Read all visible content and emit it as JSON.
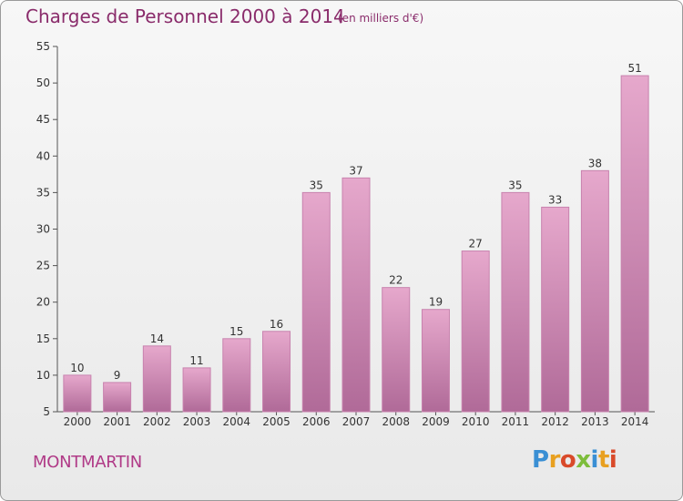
{
  "header": {
    "title": "Charges de Personnel 2000 à 2014",
    "subtitle": "(en milliers d'€)"
  },
  "footer": {
    "place": "MONTMARTIN",
    "logo_text": "Proxiti",
    "logo_colors": [
      "#3a8fd4",
      "#e8a020",
      "#d94a2a",
      "#7dbd3b",
      "#3a8fd4",
      "#e8a020",
      "#d94a2a"
    ]
  },
  "colors": {
    "bar_top": "#e6a8cc",
    "bar_bottom": "#b06a98",
    "bar_side": "#c882ae",
    "title": "#8a2c6b"
  },
  "chart_data": {
    "type": "bar",
    "title": "Charges de Personnel 2000 à 2014",
    "subtitle": "(en milliers d'€)",
    "xlabel": "",
    "ylabel": "",
    "categories": [
      "2000",
      "2001",
      "2002",
      "2003",
      "2004",
      "2005",
      "2006",
      "2007",
      "2008",
      "2009",
      "2010",
      "2011",
      "2012",
      "2013",
      "2014"
    ],
    "values": [
      10,
      9,
      14,
      11,
      15,
      16,
      35,
      37,
      22,
      19,
      27,
      35,
      33,
      38,
      51
    ],
    "ylim": [
      5,
      55
    ],
    "yticks": [
      5,
      10,
      15,
      20,
      25,
      30,
      35,
      40,
      45,
      50,
      55
    ],
    "grid": false,
    "data_labels": true
  }
}
